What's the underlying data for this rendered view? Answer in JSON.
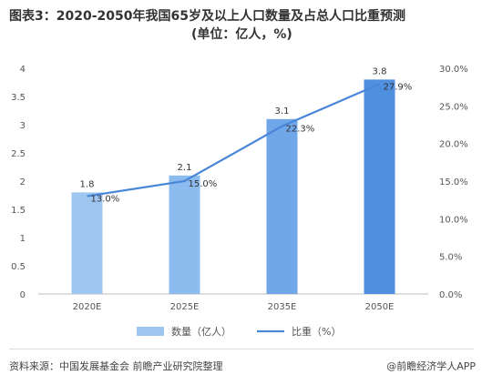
{
  "title": {
    "main": "图表3：2020-2050年我国65岁及以上人口数量及占总人口比重预测",
    "sub": "(单位：亿人，%)"
  },
  "footer": {
    "source": "资料来源：中国发展基金会 前瞻产业研究院整理",
    "brand": "@前瞻经济学人APP"
  },
  "chart_data": {
    "type": "bar",
    "categories": [
      "2020E",
      "2025E",
      "2035E",
      "2050E"
    ],
    "series": [
      {
        "name": "数量（亿人）",
        "type": "bar",
        "axis": "left",
        "values": [
          1.8,
          2.1,
          3.1,
          3.8
        ],
        "labels": [
          "1.8",
          "2.1",
          "3.1",
          "3.8"
        ],
        "colors": [
          "#9ec6f1",
          "#8bbbef",
          "#6fa7e9",
          "#4f8fe0"
        ]
      },
      {
        "name": "比重（%）",
        "type": "line",
        "axis": "right",
        "values": [
          13.0,
          15.0,
          22.3,
          27.9
        ],
        "labels": [
          "13.0%",
          "15.0%",
          "22.3%",
          "27.9%"
        ],
        "color": "#4a86d8"
      }
    ],
    "ylim_left": [
      0,
      4
    ],
    "yticks_left": [
      "0",
      "0.5",
      "1",
      "1.5",
      "2",
      "2.5",
      "3",
      "3.5",
      "4"
    ],
    "ylim_right": [
      0,
      30
    ],
    "yticks_right": [
      "0.0%",
      "5.0%",
      "10.0%",
      "15.0%",
      "20.0%",
      "25.0%",
      "30.0%"
    ],
    "grid": false,
    "legend_position": "bottom"
  }
}
